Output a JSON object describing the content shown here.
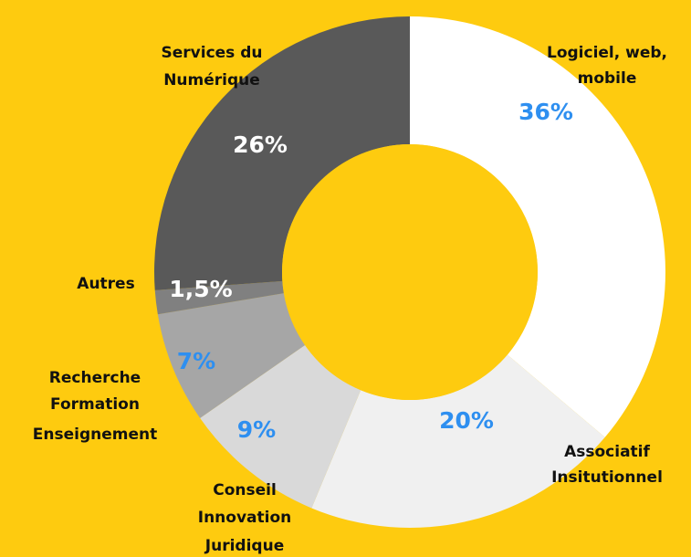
{
  "chart_data": {
    "type": "donut",
    "categories": [
      [
        "Logiciel, web,",
        "mobile"
      ],
      [
        "Associatif",
        "Insitutionnel"
      ],
      [
        "Conseil",
        "Innovation",
        "Juridique"
      ],
      [
        "Recherche",
        "Formation",
        "Enseignement"
      ],
      [
        "Autres"
      ],
      [
        "Services du",
        "Numérique"
      ]
    ],
    "values": [
      36,
      20,
      9,
      7,
      1.5,
      26
    ],
    "value_labels": [
      "36%",
      "20%",
      "9%",
      "7%",
      "1,5%",
      "26%"
    ],
    "colors": [
      "#ffffff",
      "#f0f0f0",
      "#d9d9d9",
      "#a6a6a6",
      "#808080",
      "#595959"
    ],
    "label_colors": [
      "#2e8ff0",
      "#2e8ff0",
      "#2e8ff0",
      "#2e8ff0",
      "#ffffff",
      "#ffffff"
    ]
  }
}
